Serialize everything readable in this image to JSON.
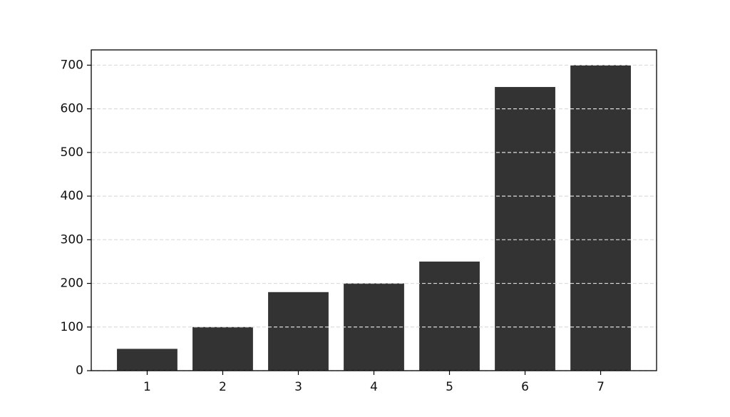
{
  "chart_data": {
    "type": "bar",
    "categories": [
      "1",
      "2",
      "3",
      "4",
      "5",
      "6",
      "7"
    ],
    "values": [
      50,
      100,
      180,
      200,
      250,
      650,
      700
    ],
    "color": "#333333",
    "ylim": [
      0,
      735
    ],
    "yticks": [
      0,
      100,
      200,
      300,
      400,
      500,
      600,
      700
    ],
    "grid": true
  }
}
